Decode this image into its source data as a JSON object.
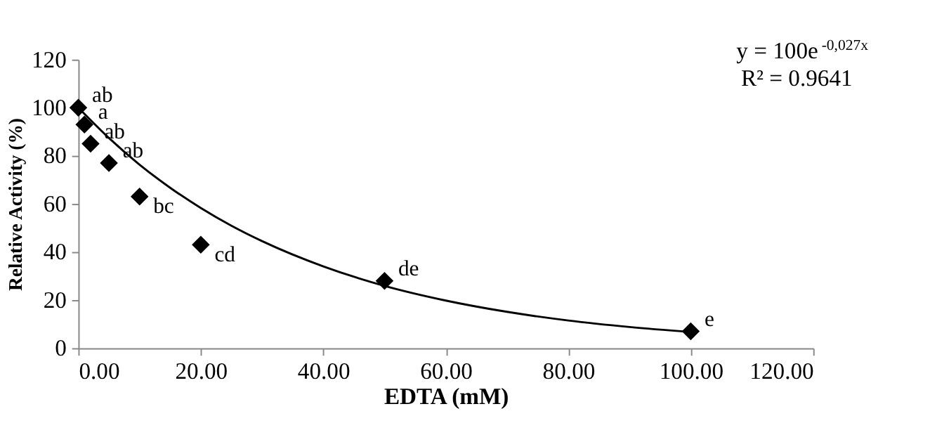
{
  "chart_data": {
    "type": "scatter",
    "xlabel": "EDTA (mM)",
    "ylabel": "Relative Activity (%)",
    "x": [
      0,
      1,
      2,
      5,
      10,
      20,
      50,
      100
    ],
    "series": [
      {
        "type": "scatter",
        "color": "#000000",
        "marker": "diamond",
        "values": [
          100,
          93,
          85,
          77,
          63,
          43,
          28,
          7
        ]
      },
      {
        "type": "line",
        "color": "#000000",
        "line_style": "solid",
        "x": [
          0,
          5,
          10,
          15,
          20,
          25,
          30,
          40,
          50,
          60,
          70,
          80,
          90,
          100
        ],
        "values": [
          100,
          87.4,
          76.3,
          66.7,
          58.3,
          50.9,
          44.5,
          34.0,
          25.9,
          19.8,
          15.1,
          11.5,
          8.8,
          6.7
        ]
      }
    ],
    "xlim": [
      0,
      120
    ],
    "xticks": [
      {
        "value": 0,
        "label": "0.00"
      },
      {
        "value": 20,
        "label": "20.00"
      },
      {
        "value": 40,
        "label": "40.00"
      },
      {
        "value": 60,
        "label": "60.00"
      },
      {
        "value": 80,
        "label": "80.00"
      },
      {
        "value": 100,
        "label": "100.00"
      },
      {
        "value": 120,
        "label": "120.00"
      }
    ],
    "ylim": [
      0,
      120
    ],
    "yticks": [
      0,
      20,
      40,
      60,
      80,
      100,
      120
    ],
    "grid": false,
    "annotations": [
      "y = 100e$^{-0,027x}$",
      "R² = 0.9641",
      {
        "text": "ab",
        "x": 0,
        "y": 100
      },
      {
        "text": "a",
        "x": 1,
        "y": 93
      },
      {
        "text": "ab",
        "x": 2,
        "y": 85
      },
      {
        "text": "ab",
        "x": 5,
        "y": 77
      },
      {
        "text": "bc",
        "x": 10,
        "y": 63
      },
      {
        "text": "cd",
        "x": 20,
        "y": 43
      },
      {
        "text": "de",
        "x": 50,
        "y": 28
      },
      {
        "text": "e",
        "x": 100,
        "y": 7
      }
    ]
  }
}
